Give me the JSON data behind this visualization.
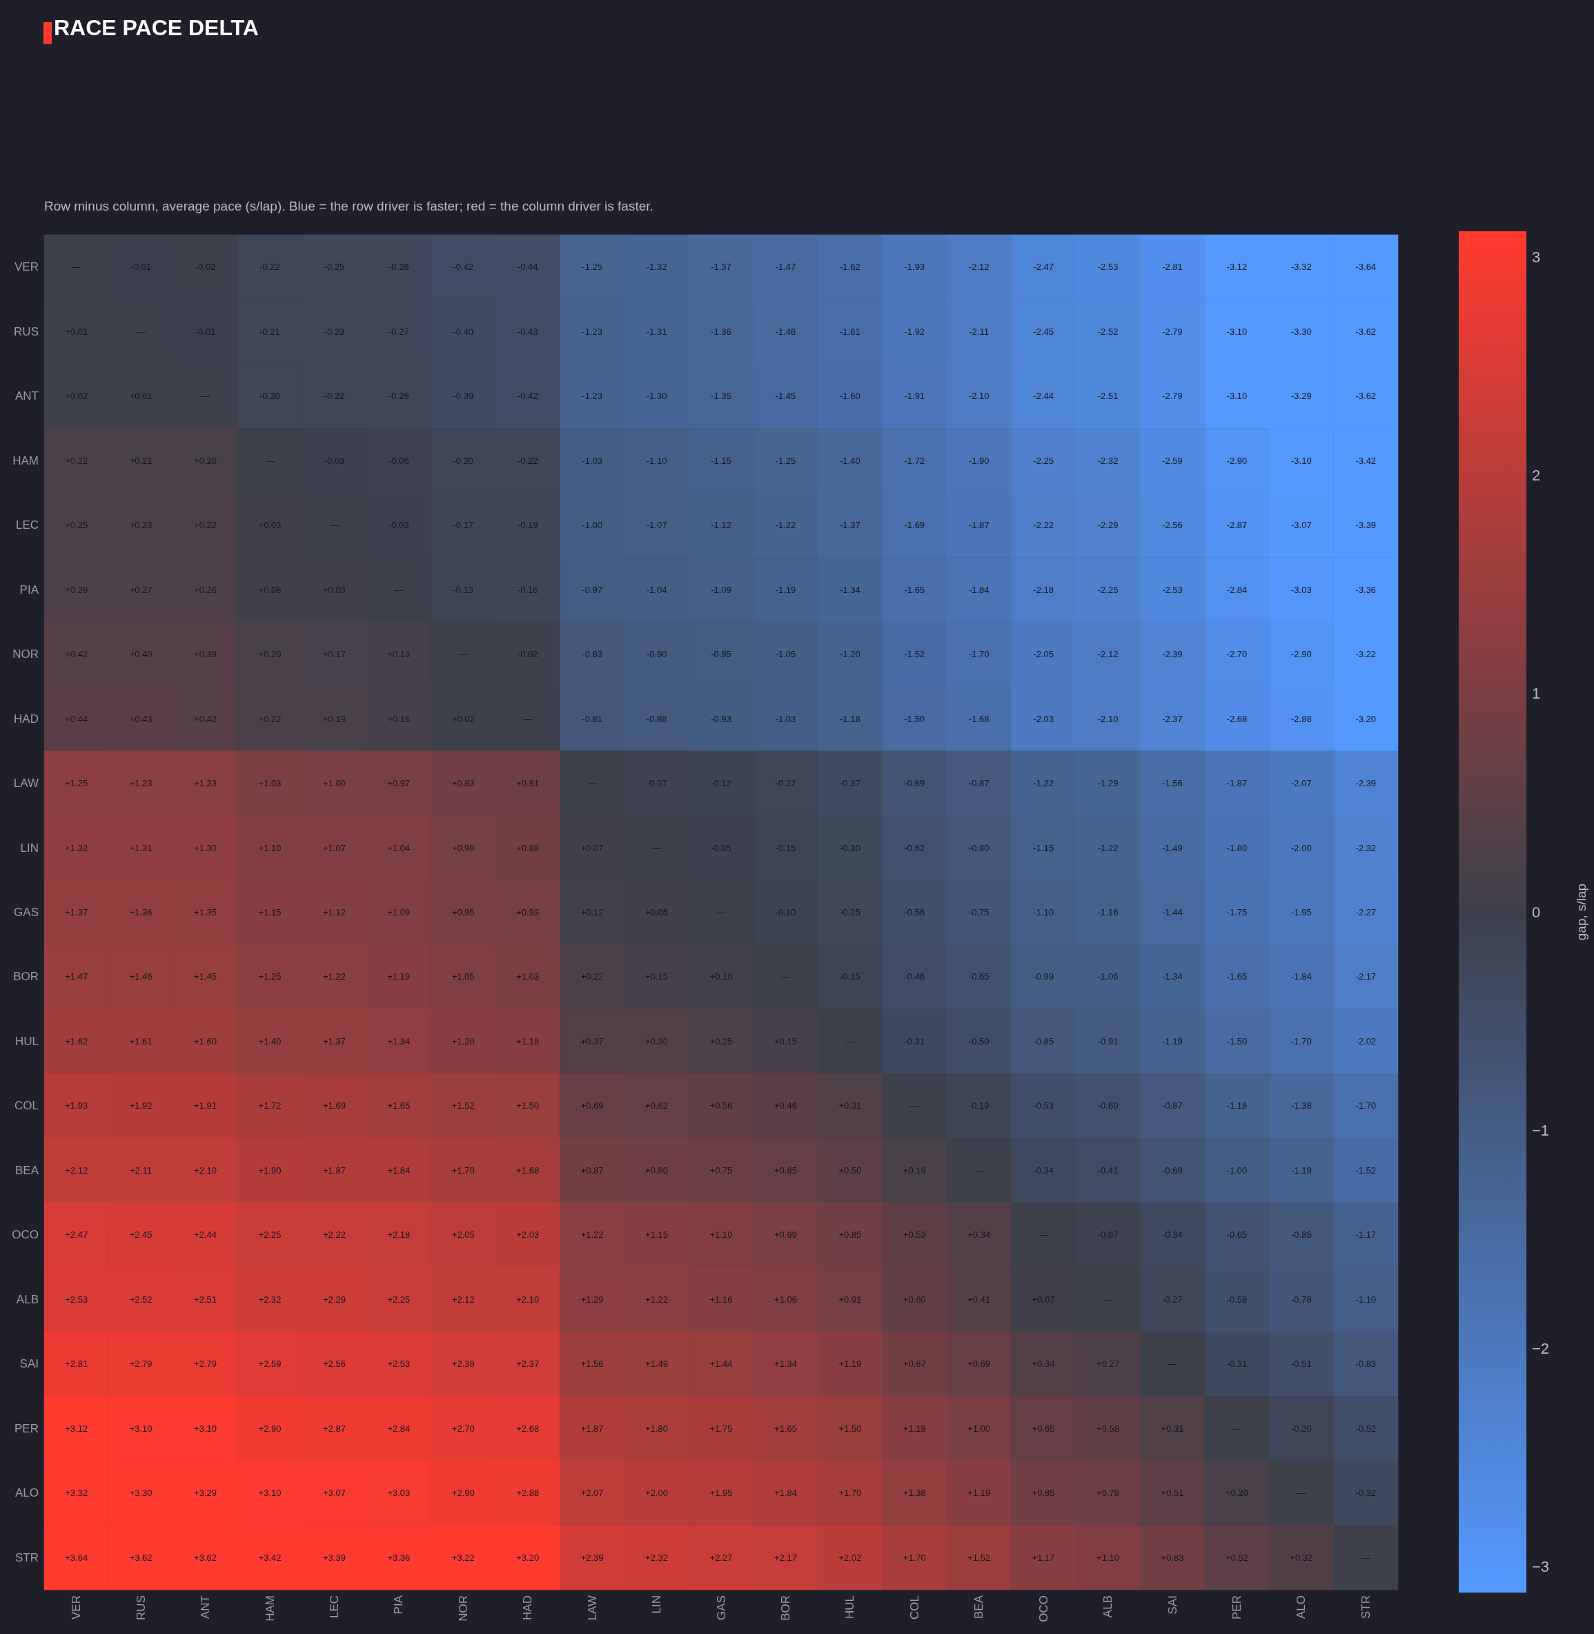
{
  "chart_data": {
    "type": "heatmap",
    "title": "RACE PACE DELTA",
    "subtitle": "Row minus column, average pace (s/lap). Blue = the row driver is faster; red = the column driver is faster.",
    "clabel": "gap, s/lap",
    "categories": [
      "VER",
      "RUS",
      "ANT",
      "HAM",
      "LEC",
      "PIA",
      "NOR",
      "HAD",
      "LAW",
      "LIN",
      "GAS",
      "BOR",
      "HUL",
      "COL",
      "BEA",
      "OCO",
      "ALB",
      "SAI",
      "PER",
      "ALO",
      "STR"
    ],
    "y_categories": [
      "VER",
      "RUS",
      "ANT",
      "HAM",
      "LEC",
      "PIA",
      "NOR",
      "HAD",
      "LAW",
      "LIN",
      "GAS",
      "BOR",
      "HUL",
      "COL",
      "BEA",
      "OCO",
      "ALB",
      "SAI",
      "PER",
      "ALO",
      "STR"
    ],
    "clim": [
      -3.12,
      3.12
    ],
    "cticks": [
      {
        "value": -3,
        "label": "−3"
      },
      {
        "value": -2,
        "label": "−2"
      },
      {
        "value": -1,
        "label": "−1"
      },
      0,
      1,
      2,
      3
    ],
    "cells": [
      [
        0,
        -0.01,
        -0.02,
        -0.22,
        -0.25,
        -0.28,
        -0.42,
        -0.44,
        -1.25,
        -1.32,
        -1.37,
        -1.47,
        -1.62,
        -1.93,
        -2.12,
        -2.47,
        -2.53,
        -2.81,
        -3.12,
        -3.32,
        -3.64
      ],
      [
        0.01,
        0,
        -0.01,
        -0.21,
        -0.23,
        -0.27,
        -0.4,
        -0.43,
        -1.23,
        -1.31,
        -1.36,
        -1.46,
        -1.61,
        -1.92,
        -2.11,
        -2.45,
        -2.52,
        -2.79,
        -3.1,
        -3.3,
        -3.62
      ],
      [
        0.02,
        0.01,
        0,
        -0.2,
        -0.22,
        -0.26,
        -0.39,
        -0.42,
        -1.23,
        -1.3,
        -1.35,
        -1.45,
        -1.6,
        -1.91,
        -2.1,
        -2.44,
        -2.51,
        -2.79,
        -3.1,
        -3.29,
        -3.62
      ],
      [
        0.22,
        0.21,
        0.2,
        0,
        -0.03,
        -0.06,
        -0.2,
        -0.22,
        -1.03,
        -1.1,
        -1.15,
        -1.25,
        -1.4,
        -1.72,
        -1.9,
        -2.25,
        -2.32,
        -2.59,
        -2.9,
        -3.1,
        -3.42
      ],
      [
        0.25,
        0.23,
        0.22,
        0.03,
        0,
        -0.03,
        -0.17,
        -0.19,
        -1.0,
        -1.07,
        -1.12,
        -1.22,
        -1.37,
        -1.69,
        -1.87,
        -2.22,
        -2.29,
        -2.56,
        -2.87,
        -3.07,
        -3.39
      ],
      [
        0.28,
        0.27,
        0.26,
        0.06,
        0.03,
        0,
        -0.13,
        -0.16,
        -0.97,
        -1.04,
        -1.09,
        -1.19,
        -1.34,
        -1.65,
        -1.84,
        -2.18,
        -2.25,
        -2.53,
        -2.84,
        -3.03,
        -3.36
      ],
      [
        0.42,
        0.4,
        0.39,
        0.2,
        0.17,
        0.13,
        0,
        -0.02,
        -0.83,
        -0.9,
        -0.95,
        -1.05,
        -1.2,
        -1.52,
        -1.7,
        -2.05,
        -2.12,
        -2.39,
        -2.7,
        -2.9,
        -3.22
      ],
      [
        0.44,
        0.43,
        0.42,
        0.22,
        0.19,
        0.16,
        0.02,
        0,
        -0.81,
        -0.88,
        -0.93,
        -1.03,
        -1.18,
        -1.5,
        -1.68,
        -2.03,
        -2.1,
        -2.37,
        -2.68,
        -2.88,
        -3.2
      ],
      [
        1.25,
        1.23,
        1.23,
        1.03,
        1.0,
        0.97,
        0.83,
        0.81,
        0,
        -0.07,
        -0.12,
        -0.22,
        -0.37,
        -0.69,
        -0.87,
        -1.22,
        -1.29,
        -1.56,
        -1.87,
        -2.07,
        -2.39
      ],
      [
        1.32,
        1.31,
        1.3,
        1.1,
        1.07,
        1.04,
        0.9,
        0.88,
        0.07,
        0,
        -0.05,
        -0.15,
        -0.3,
        -0.62,
        -0.8,
        -1.15,
        -1.22,
        -1.49,
        -1.8,
        -2.0,
        -2.32
      ],
      [
        1.37,
        1.36,
        1.35,
        1.15,
        1.12,
        1.09,
        0.95,
        0.93,
        0.12,
        0.05,
        0,
        -0.1,
        -0.25,
        -0.56,
        -0.75,
        -1.1,
        -1.16,
        -1.44,
        -1.75,
        -1.95,
        -2.27
      ],
      [
        1.47,
        1.46,
        1.45,
        1.25,
        1.22,
        1.19,
        1.05,
        1.03,
        0.22,
        0.15,
        0.1,
        0,
        -0.15,
        -0.46,
        -0.65,
        -0.99,
        -1.06,
        -1.34,
        -1.65,
        -1.84,
        -2.17
      ],
      [
        1.62,
        1.61,
        1.6,
        1.4,
        1.37,
        1.34,
        1.2,
        1.18,
        0.37,
        0.3,
        0.25,
        0.15,
        0,
        -0.31,
        -0.5,
        -0.85,
        -0.91,
        -1.19,
        -1.5,
        -1.7,
        -2.02
      ],
      [
        1.93,
        1.92,
        1.91,
        1.72,
        1.69,
        1.65,
        1.52,
        1.5,
        0.69,
        0.62,
        0.56,
        0.46,
        0.31,
        0,
        -0.19,
        -0.53,
        -0.6,
        -0.87,
        -1.18,
        -1.38,
        -1.7
      ],
      [
        2.12,
        2.11,
        2.1,
        1.9,
        1.87,
        1.84,
        1.7,
        1.68,
        0.87,
        0.8,
        0.75,
        0.65,
        0.5,
        0.19,
        0,
        -0.34,
        -0.41,
        -0.69,
        -1.0,
        -1.19,
        -1.52
      ],
      [
        2.47,
        2.45,
        2.44,
        2.25,
        2.22,
        2.18,
        2.05,
        2.03,
        1.22,
        1.15,
        1.1,
        0.99,
        0.85,
        0.53,
        0.34,
        0,
        -0.07,
        -0.34,
        -0.65,
        -0.85,
        -1.17
      ],
      [
        2.53,
        2.52,
        2.51,
        2.32,
        2.29,
        2.25,
        2.12,
        2.1,
        1.29,
        1.22,
        1.16,
        1.06,
        0.91,
        0.6,
        0.41,
        0.07,
        0,
        -0.27,
        -0.58,
        -0.78,
        -1.1
      ],
      [
        2.81,
        2.79,
        2.79,
        2.59,
        2.56,
        2.53,
        2.39,
        2.37,
        1.56,
        1.49,
        1.44,
        1.34,
        1.19,
        0.87,
        0.69,
        0.34,
        0.27,
        0,
        -0.31,
        -0.51,
        -0.83
      ],
      [
        3.12,
        3.1,
        3.1,
        2.9,
        2.87,
        2.84,
        2.7,
        2.68,
        1.87,
        1.8,
        1.75,
        1.65,
        1.5,
        1.18,
        1.0,
        0.65,
        0.58,
        0.31,
        0,
        -0.2,
        -0.52
      ],
      [
        3.32,
        3.3,
        3.29,
        3.1,
        3.07,
        3.03,
        2.9,
        2.88,
        2.07,
        2.0,
        1.95,
        1.84,
        1.7,
        1.38,
        1.19,
        0.85,
        0.78,
        0.51,
        0.2,
        0,
        -0.32
      ],
      [
        3.64,
        3.62,
        3.62,
        3.42,
        3.39,
        3.36,
        3.22,
        3.2,
        2.39,
        2.32,
        2.27,
        2.17,
        2.02,
        1.7,
        1.52,
        1.17,
        1.1,
        0.83,
        0.52,
        0.32,
        0
      ]
    ],
    "cell_labels": [
      [
        "—",
        "-0.01",
        "-0.02",
        "-0.22",
        "-0.25",
        "-0.28",
        "-0.42",
        "-0.44",
        "-1.25",
        "-1.32",
        "-1.37",
        "-1.47",
        "-1.62",
        "-1.93",
        "-2.12",
        "-2.47",
        "-2.53",
        "-2.81",
        "-3.12",
        "-3.32",
        "-3.64"
      ],
      [
        "+0.01",
        "—",
        "-0.01",
        "-0.21",
        "-0.23",
        "-0.27",
        "-0.40",
        "-0.43",
        "-1.23",
        "-1.31",
        "-1.36",
        "-1.46",
        "-1.61",
        "-1.92",
        "-2.11",
        "-2.45",
        "-2.52",
        "-2.79",
        "-3.10",
        "-3.30",
        "-3.62"
      ],
      [
        "+0.02",
        "+0.01",
        "—",
        "-0.20",
        "-0.22",
        "-0.26",
        "-0.39",
        "-0.42",
        "-1.23",
        "-1.30",
        "-1.35",
        "-1.45",
        "-1.60",
        "-1.91",
        "-2.10",
        "-2.44",
        "-2.51",
        "-2.79",
        "-3.10",
        "-3.29",
        "-3.62"
      ],
      [
        "+0.22",
        "+0.21",
        "+0.20",
        "—",
        "-0.03",
        "-0.06",
        "-0.20",
        "-0.22",
        "-1.03",
        "-1.10",
        "-1.15",
        "-1.25",
        "-1.40",
        "-1.72",
        "-1.90",
        "-2.25",
        "-2.32",
        "-2.59",
        "-2.90",
        "-3.10",
        "-3.42"
      ],
      [
        "+0.25",
        "+0.23",
        "+0.22",
        "+0.03",
        "—",
        "-0.03",
        "-0.17",
        "-0.19",
        "-1.00",
        "-1.07",
        "-1.12",
        "-1.22",
        "-1.37",
        "-1.69",
        "-1.87",
        "-2.22",
        "-2.29",
        "-2.56",
        "-2.87",
        "-3.07",
        "-3.39"
      ],
      [
        "+0.28",
        "+0.27",
        "+0.26",
        "+0.06",
        "+0.03",
        "—",
        "-0.13",
        "-0.16",
        "-0.97",
        "-1.04",
        "-1.09",
        "-1.19",
        "-1.34",
        "-1.65",
        "-1.84",
        "-2.18",
        "-2.25",
        "-2.53",
        "-2.84",
        "-3.03",
        "-3.36"
      ],
      [
        "+0.42",
        "+0.40",
        "+0.39",
        "+0.20",
        "+0.17",
        "+0.13",
        "—",
        "-0.02",
        "-0.83",
        "-0.90",
        "-0.95",
        "-1.05",
        "-1.20",
        "-1.52",
        "-1.70",
        "-2.05",
        "-2.12",
        "-2.39",
        "-2.70",
        "-2.90",
        "-3.22"
      ],
      [
        "+0.44",
        "+0.43",
        "+0.42",
        "+0.22",
        "+0.19",
        "+0.16",
        "+0.02",
        "—",
        "-0.81",
        "-0.88",
        "-0.93",
        "-1.03",
        "-1.18",
        "-1.50",
        "-1.68",
        "-2.03",
        "-2.10",
        "-2.37",
        "-2.68",
        "-2.88",
        "-3.20"
      ],
      [
        "+1.25",
        "+1.23",
        "+1.23",
        "+1.03",
        "+1.00",
        "+0.97",
        "+0.83",
        "+0.81",
        "—",
        "-0.07",
        "-0.12",
        "-0.22",
        "-0.37",
        "-0.69",
        "-0.87",
        "-1.22",
        "-1.29",
        "-1.56",
        "-1.87",
        "-2.07",
        "-2.39"
      ],
      [
        "+1.32",
        "+1.31",
        "+1.30",
        "+1.10",
        "+1.07",
        "+1.04",
        "+0.90",
        "+0.88",
        "+0.07",
        "—",
        "-0.05",
        "-0.15",
        "-0.30",
        "-0.62",
        "-0.80",
        "-1.15",
        "-1.22",
        "-1.49",
        "-1.80",
        "-2.00",
        "-2.32"
      ],
      [
        "+1.37",
        "+1.36",
        "+1.35",
        "+1.15",
        "+1.12",
        "+1.09",
        "+0.95",
        "+0.93",
        "+0.12",
        "+0.05",
        "—",
        "-0.10",
        "-0.25",
        "-0.56",
        "-0.75",
        "-1.10",
        "-1.16",
        "-1.44",
        "-1.75",
        "-1.95",
        "-2.27"
      ],
      [
        "+1.47",
        "+1.46",
        "+1.45",
        "+1.25",
        "+1.22",
        "+1.19",
        "+1.05",
        "+1.03",
        "+0.22",
        "+0.15",
        "+0.10",
        "—",
        "-0.15",
        "-0.46",
        "-0.65",
        "-0.99",
        "-1.06",
        "-1.34",
        "-1.65",
        "-1.84",
        "-2.17"
      ],
      [
        "+1.62",
        "+1.61",
        "+1.60",
        "+1.40",
        "+1.37",
        "+1.34",
        "+1.20",
        "+1.18",
        "+0.37",
        "+0.30",
        "+0.25",
        "+0.15",
        "—",
        "-0.31",
        "-0.50",
        "-0.85",
        "-0.91",
        "-1.19",
        "-1.50",
        "-1.70",
        "-2.02"
      ],
      [
        "+1.93",
        "+1.92",
        "+1.91",
        "+1.72",
        "+1.69",
        "+1.65",
        "+1.52",
        "+1.50",
        "+0.69",
        "+0.62",
        "+0.56",
        "+0.46",
        "+0.31",
        "—",
        "-0.19",
        "-0.53",
        "-0.60",
        "-0.87",
        "-1.18",
        "-1.38",
        "-1.70"
      ],
      [
        "+2.12",
        "+2.11",
        "+2.10",
        "+1.90",
        "+1.87",
        "+1.84",
        "+1.70",
        "+1.68",
        "+0.87",
        "+0.80",
        "+0.75",
        "+0.65",
        "+0.50",
        "+0.19",
        "—",
        "-0.34",
        "-0.41",
        "-0.69",
        "-1.00",
        "-1.19",
        "-1.52"
      ],
      [
        "+2.47",
        "+2.45",
        "+2.44",
        "+2.25",
        "+2.22",
        "+2.18",
        "+2.05",
        "+2.03",
        "+1.22",
        "+1.15",
        "+1.10",
        "+0.99",
        "+0.85",
        "+0.53",
        "+0.34",
        "—",
        "-0.07",
        "-0.34",
        "-0.65",
        "-0.85",
        "-1.17"
      ],
      [
        "+2.53",
        "+2.52",
        "+2.51",
        "+2.32",
        "+2.29",
        "+2.25",
        "+2.12",
        "+2.10",
        "+1.29",
        "+1.22",
        "+1.16",
        "+1.06",
        "+0.91",
        "+0.60",
        "+0.41",
        "+0.07",
        "—",
        "-0.27",
        "-0.58",
        "-0.78",
        "-1.10"
      ],
      [
        "+2.81",
        "+2.79",
        "+2.79",
        "+2.59",
        "+2.56",
        "+2.53",
        "+2.39",
        "+2.37",
        "+1.56",
        "+1.49",
        "+1.44",
        "+1.34",
        "+1.19",
        "+0.87",
        "+0.69",
        "+0.34",
        "+0.27",
        "—",
        "-0.31",
        "-0.51",
        "-0.83"
      ],
      [
        "+3.12",
        "+3.10",
        "+3.10",
        "+2.90",
        "+2.87",
        "+2.84",
        "+2.70",
        "+2.68",
        "+1.87",
        "+1.80",
        "+1.75",
        "+1.65",
        "+1.50",
        "+1.18",
        "+1.00",
        "+0.65",
        "+0.58",
        "+0.31",
        "—",
        "-0.20",
        "-0.52"
      ],
      [
        "+3.32",
        "+3.30",
        "+3.29",
        "+3.10",
        "+3.07",
        "+3.03",
        "+2.90",
        "+2.88",
        "+2.07",
        "+2.00",
        "+1.95",
        "+1.84",
        "+1.70",
        "+1.38",
        "+1.19",
        "+0.85",
        "+0.78",
        "+0.51",
        "+0.20",
        "—",
        "-0.32"
      ],
      [
        "+3.64",
        "+3.62",
        "+3.62",
        "+3.42",
        "+3.39",
        "+3.36",
        "+3.22",
        "+3.20",
        "+2.39",
        "+2.32",
        "+2.27",
        "+2.17",
        "+2.02",
        "+1.70",
        "+1.52",
        "+1.17",
        "+1.10",
        "+0.83",
        "+0.52",
        "+0.32",
        "—"
      ]
    ]
  }
}
